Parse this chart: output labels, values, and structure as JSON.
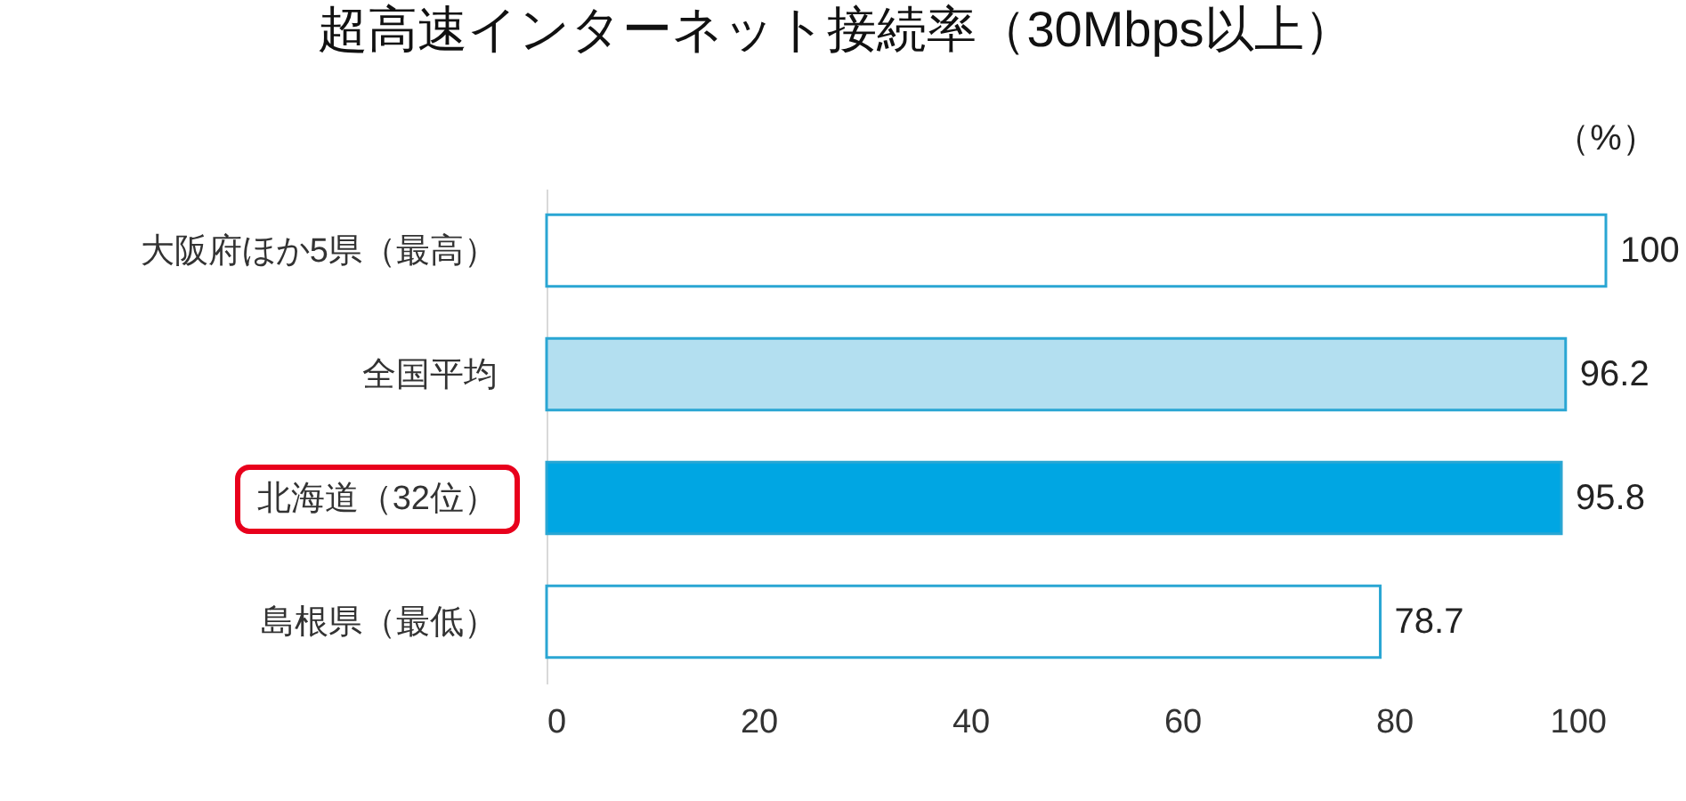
{
  "chart_data": {
    "type": "bar",
    "orientation": "horizontal",
    "title": "超高速インターネット接続率（30Mbps以上）",
    "annotations": [
      "（%）"
    ],
    "categories": [
      "大阪府ほか5県（最高）",
      "全国平均",
      "北海道（32位）",
      "島根県（最低）"
    ],
    "values": [
      100,
      96.2,
      95.8,
      78.7
    ],
    "colors": [
      "#ffffff",
      "#b3dff0",
      "#00a6e3",
      "#ffffff"
    ],
    "color": "#2aa6d3",
    "xlim": [
      0,
      100
    ],
    "xticks": [
      0,
      20,
      40,
      60,
      80,
      100
    ],
    "data_labels": true,
    "grid": false
  }
}
